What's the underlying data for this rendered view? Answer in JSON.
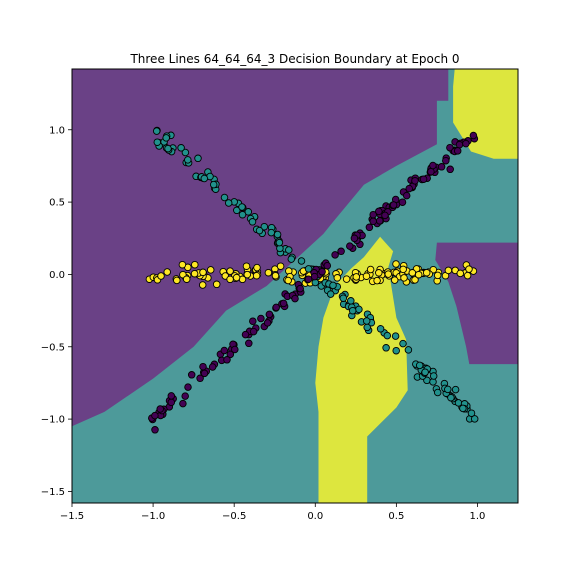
{
  "chart_data": {
    "type": "scatter",
    "title": "Three Lines 64_64_64_3 Decision Boundary at Epoch 0",
    "xlabel": "",
    "ylabel": "",
    "xlim": [
      -1.5,
      1.25
    ],
    "ylim": [
      -1.58,
      1.42
    ],
    "xticks": [
      -1.5,
      -1.0,
      -0.5,
      0.0,
      0.5,
      1.0
    ],
    "xtick_labels": [
      "−1.5",
      "−1.0",
      "−0.5",
      "0.0",
      "0.5",
      "1.0"
    ],
    "yticks": [
      -1.5,
      -1.0,
      -0.5,
      0.0,
      0.5,
      1.0
    ],
    "ytick_labels": [
      "−1.5",
      "−1.0",
      "−0.5",
      "0.0",
      "0.5",
      "1.0"
    ],
    "grid": false,
    "legend": "none",
    "colors": {
      "class0": "#440154",
      "class1": "#21918c",
      "class2": "#fde725",
      "region_purple": "#6a4186",
      "region_teal": "#4d9a9a",
      "region_yellow": "#dde63e"
    },
    "series": [
      {
        "class": 0,
        "color": "#440154",
        "line": {
          "x_from": -1.0,
          "x_to": 1.0,
          "slope": 1.0,
          "intercept": 0.0,
          "noise": 0.03,
          "count": 150
        },
        "points": []
      },
      {
        "class": 1,
        "color": "#21918c",
        "line": {
          "x_from": -1.0,
          "x_to": 1.0,
          "slope": -1.0,
          "intercept": 0.0,
          "noise": 0.03,
          "count": 150
        },
        "points": []
      },
      {
        "class": 2,
        "color": "#fde725",
        "line": {
          "x_from": -1.0,
          "x_to": 1.0,
          "slope": 0.0,
          "intercept": 0.0,
          "noise": 0.03,
          "count": 150
        },
        "points": []
      }
    ],
    "regions": [
      {
        "name": "region-teal-base",
        "color": "#4d9a9a",
        "polygon": [
          [
            -1.5,
            -1.58
          ],
          [
            1.25,
            -1.58
          ],
          [
            1.25,
            1.42
          ],
          [
            -1.5,
            1.42
          ]
        ]
      },
      {
        "name": "region-purple-upper-left",
        "color": "#6a4186",
        "polygon": [
          [
            -1.5,
            -1.05
          ],
          [
            -1.5,
            1.42
          ],
          [
            0.82,
            1.42
          ],
          [
            0.82,
            1.2
          ],
          [
            0.75,
            1.2
          ],
          [
            0.75,
            0.9
          ],
          [
            0.5,
            0.75
          ],
          [
            0.3,
            0.62
          ],
          [
            0.1,
            0.35
          ],
          [
            0.05,
            0.28
          ],
          [
            -0.3,
            -0.08
          ],
          [
            -0.55,
            -0.25
          ],
          [
            -0.75,
            -0.5
          ],
          [
            -1.0,
            -0.72
          ],
          [
            -1.3,
            -0.95
          ]
        ]
      },
      {
        "name": "region-purple-right",
        "color": "#6a4186",
        "polygon": [
          [
            0.75,
            0.22
          ],
          [
            1.25,
            0.22
          ],
          [
            1.25,
            -0.62
          ],
          [
            0.95,
            -0.62
          ],
          [
            0.93,
            -0.5
          ],
          [
            0.87,
            -0.22
          ],
          [
            0.82,
            -0.05
          ],
          [
            0.74,
            0.1
          ]
        ]
      },
      {
        "name": "region-yellow-top",
        "color": "#dde63e",
        "polygon": [
          [
            0.86,
            1.42
          ],
          [
            1.25,
            1.42
          ],
          [
            1.25,
            0.8
          ],
          [
            1.1,
            0.8
          ],
          [
            0.96,
            0.85
          ],
          [
            0.85,
            1.05
          ],
          [
            0.85,
            1.3
          ]
        ]
      },
      {
        "name": "region-yellow-bottom",
        "color": "#dde63e",
        "polygon": [
          [
            0.02,
            -1.58
          ],
          [
            0.32,
            -1.58
          ],
          [
            0.32,
            -1.12
          ],
          [
            0.5,
            -0.92
          ],
          [
            0.57,
            -0.8
          ],
          [
            0.56,
            -0.45
          ],
          [
            0.5,
            -0.3
          ],
          [
            0.45,
            0.05
          ],
          [
            0.48,
            0.16
          ],
          [
            0.4,
            0.26
          ],
          [
            0.3,
            0.12
          ],
          [
            0.22,
            0.04
          ],
          [
            0.12,
            -0.08
          ],
          [
            0.05,
            -0.3
          ],
          [
            0.02,
            -0.5
          ],
          [
            0.0,
            -0.75
          ],
          [
            0.02,
            -0.95
          ]
        ]
      }
    ]
  }
}
